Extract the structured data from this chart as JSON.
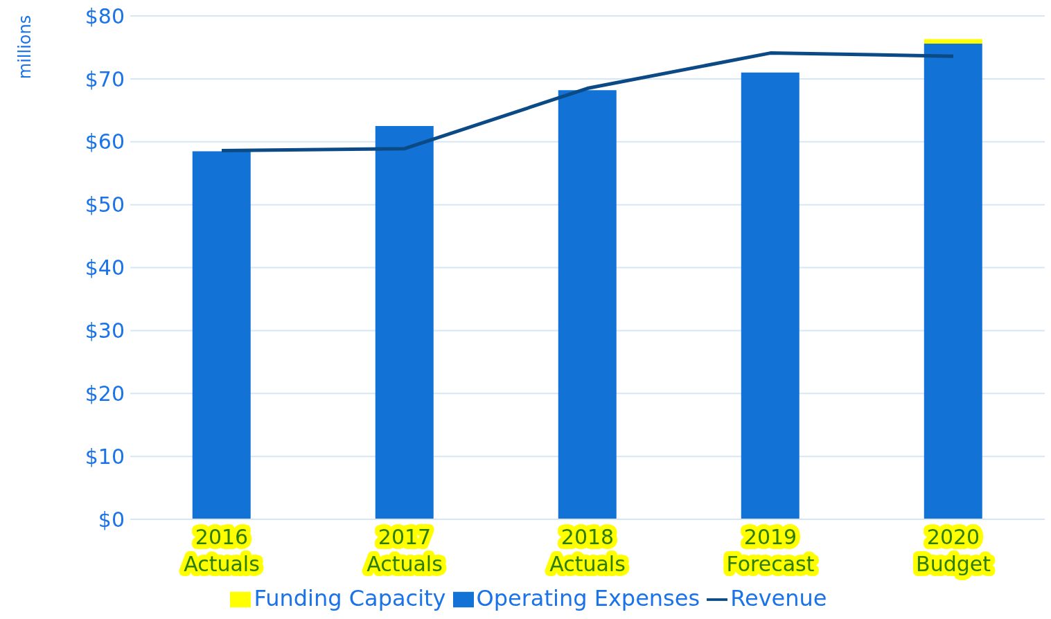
{
  "chart_data": {
    "type": "bar",
    "stacked": true,
    "ylabel": "millions",
    "categories": [
      "2016 Actuals",
      "2017 Actuals",
      "2018 Actuals",
      "2019 Forecast",
      "2020 Budget"
    ],
    "series": [
      {
        "name": "Operating Expenses",
        "color": "#1272d6",
        "values": [
          58.5,
          62.5,
          68.2,
          71.0,
          75.6
        ]
      },
      {
        "name": "Funding Capacity",
        "color": "#ffff00",
        "values": [
          null,
          null,
          null,
          null,
          0.7
        ]
      },
      {
        "name": "Revenue",
        "type": "line",
        "color": "#0b4a85",
        "values": [
          58.6,
          58.9,
          68.5,
          74.1,
          73.6
        ]
      }
    ],
    "ylim": [
      0,
      80
    ],
    "yticks": [
      {
        "value": 0,
        "label": "$0"
      },
      {
        "value": 10,
        "label": "$10"
      },
      {
        "value": 20,
        "label": "$20"
      },
      {
        "value": 30,
        "label": "$30"
      },
      {
        "value": 40,
        "label": "$40"
      },
      {
        "value": 50,
        "label": "$50"
      },
      {
        "value": 60,
        "label": "$60"
      },
      {
        "value": 70,
        "label": "$70"
      },
      {
        "value": 80,
        "label": "$80"
      }
    ],
    "grid": "y",
    "legend": "bottom",
    "marker": "none",
    "line_style": "solid"
  }
}
